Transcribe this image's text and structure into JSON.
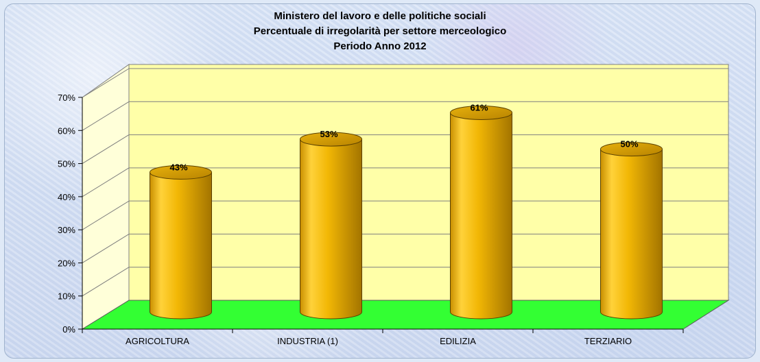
{
  "chart_data": {
    "type": "bar",
    "title_lines": [
      "Ministero del lavoro e delle politiche sociali",
      "Percentuale di irregolarità per settore merceologico",
      "Periodo Anno 2012"
    ],
    "categories": [
      "AGRICOLTURA",
      "INDUSTRIA (1)",
      "EDILIZIA",
      "TERZIARIO"
    ],
    "values": [
      43,
      53,
      61,
      50
    ],
    "data_labels": [
      "43%",
      "53%",
      "61%",
      "50%"
    ],
    "y_ticks": [
      "0%",
      "10%",
      "20%",
      "30%",
      "40%",
      "50%",
      "60%",
      "70%"
    ],
    "ylim": [
      0,
      70
    ],
    "grid": true,
    "xlabel": "",
    "ylabel": "",
    "colors": {
      "bar": "#f2b705",
      "bar_dark": "#a37400",
      "bar_light": "#ffe07a",
      "back_wall": "#ffffa8",
      "floor": "#33ff33",
      "grid": "#7f7f7f"
    }
  }
}
